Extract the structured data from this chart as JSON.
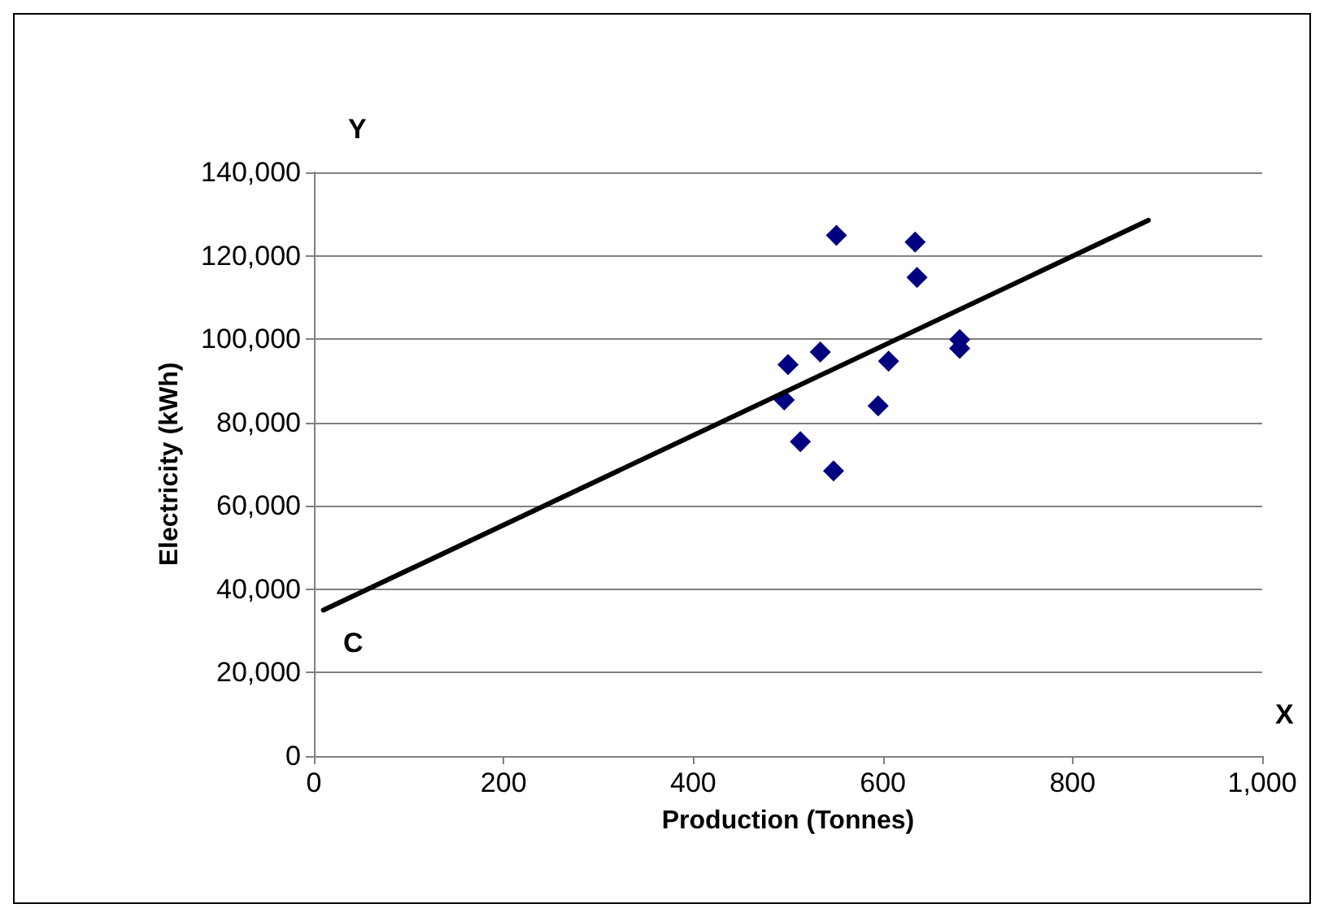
{
  "chart_data": {
    "type": "scatter",
    "xlabel": "Production (Tonnes)",
    "ylabel": "Electricity (kWh)",
    "xlim": [
      0,
      1000
    ],
    "xticks": [
      0,
      200,
      400,
      600,
      800,
      {
        "value": 1000,
        "label": "1,000"
      }
    ],
    "ylim": [
      0,
      140000
    ],
    "yticks": [
      0,
      {
        "value": 20000,
        "label": "20,000"
      },
      {
        "value": 40000,
        "label": "40,000"
      },
      {
        "value": 60000,
        "label": "60,000"
      },
      {
        "value": 80000,
        "label": "80,000"
      },
      {
        "value": 100000,
        "label": "100,000"
      },
      {
        "value": 120000,
        "label": "120,000"
      },
      {
        "value": 140000,
        "label": "140,000"
      }
    ],
    "grid": "y",
    "marker": "diamond",
    "annotations": [
      "Y",
      "C",
      "X"
    ],
    "series": [
      {
        "color": "#000080",
        "x": [
          551,
          634,
          636,
          681,
          681,
          500,
          534,
          606,
          496,
          595,
          513,
          548
        ],
        "values": [
          124900,
          123300,
          114800,
          99900,
          97800,
          93900,
          96900,
          94700,
          85400,
          84000,
          75400,
          68400
        ]
      },
      {
        "type": "line",
        "color": "#000000",
        "marker": "none",
        "line_style": "solid",
        "x": [
          10,
          880
        ],
        "values": [
          35000,
          128500
        ]
      }
    ]
  }
}
